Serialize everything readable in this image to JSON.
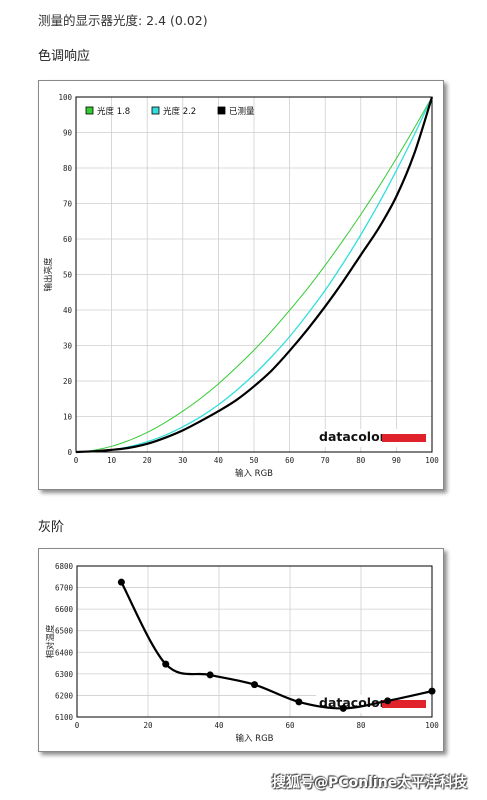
{
  "header": {
    "measured_label": "测量的显示器光度: 2.4 (0.02)"
  },
  "tone_response": {
    "section_title": "色调响应"
  },
  "grayscale": {
    "section_title": "灰阶"
  },
  "watermark": "搜狐号@PConline太平洋科技",
  "chart_data": [
    {
      "type": "line",
      "xlabel": "输入 RGB",
      "ylabel": "输出亮度",
      "xlim": [
        0,
        100
      ],
      "ylim": [
        0,
        100
      ],
      "xticks": [
        0,
        10,
        20,
        30,
        40,
        50,
        60,
        70,
        80,
        90,
        100
      ],
      "yticks": [
        0,
        10,
        20,
        30,
        40,
        50,
        60,
        70,
        80,
        90,
        100
      ],
      "grid": true,
      "legend_position": "top-left",
      "logo_text": "datacolor",
      "series": [
        {
          "name": "光度 1.8",
          "color": "#33cc33",
          "x": [
            0,
            5,
            10,
            15,
            20,
            25,
            30,
            35,
            40,
            45,
            50,
            55,
            60,
            65,
            70,
            75,
            80,
            85,
            90,
            95,
            100
          ],
          "y": [
            0,
            0.5,
            1.6,
            3.3,
            5.5,
            8.3,
            11.5,
            15.1,
            19.2,
            23.8,
            28.7,
            34.1,
            39.9,
            46.0,
            52.6,
            59.6,
            66.9,
            74.6,
            82.7,
            91.2,
            100
          ]
        },
        {
          "name": "光度 2.2",
          "color": "#33dddd",
          "x": [
            0,
            5,
            10,
            15,
            20,
            25,
            30,
            35,
            40,
            45,
            50,
            55,
            60,
            65,
            70,
            75,
            80,
            85,
            90,
            95,
            100
          ],
          "y": [
            0,
            0.1,
            0.6,
            1.5,
            2.9,
            4.7,
            7.1,
            9.9,
            13.3,
            17.3,
            21.8,
            26.9,
            32.5,
            38.8,
            45.6,
            53.1,
            61.2,
            69.9,
            79.3,
            89.3,
            100
          ]
        },
        {
          "name": "已测量",
          "color": "#000000",
          "x": [
            0,
            5,
            10,
            15,
            20,
            25,
            30,
            35,
            40,
            45,
            50,
            55,
            60,
            65,
            70,
            75,
            80,
            85,
            90,
            95,
            100
          ],
          "y": [
            0,
            0.2,
            0.6,
            1.2,
            2.3,
            4.0,
            6.1,
            8.7,
            11.5,
            14.6,
            18.5,
            23.0,
            28.5,
            34.5,
            41.0,
            48.0,
            55.5,
            63.0,
            72.0,
            84.0,
            100
          ]
        }
      ]
    },
    {
      "type": "line",
      "xlabel": "输入 RGB",
      "ylabel": "相对温度",
      "xlim": [
        0,
        100
      ],
      "ylim": [
        6100,
        6800
      ],
      "xticks": [
        0,
        20,
        40,
        60,
        80,
        100
      ],
      "yticks": [
        6100,
        6200,
        6300,
        6400,
        6500,
        6600,
        6700,
        6800
      ],
      "grid": true,
      "logo_text": "datacolor",
      "series": [
        {
          "name": "",
          "color": "#000000",
          "x": [
            12.5,
            25,
            37.5,
            50,
            62.5,
            75,
            87.5,
            100
          ],
          "y": [
            6725,
            6345,
            6295,
            6250,
            6170,
            6140,
            6175,
            6220
          ]
        }
      ]
    }
  ]
}
